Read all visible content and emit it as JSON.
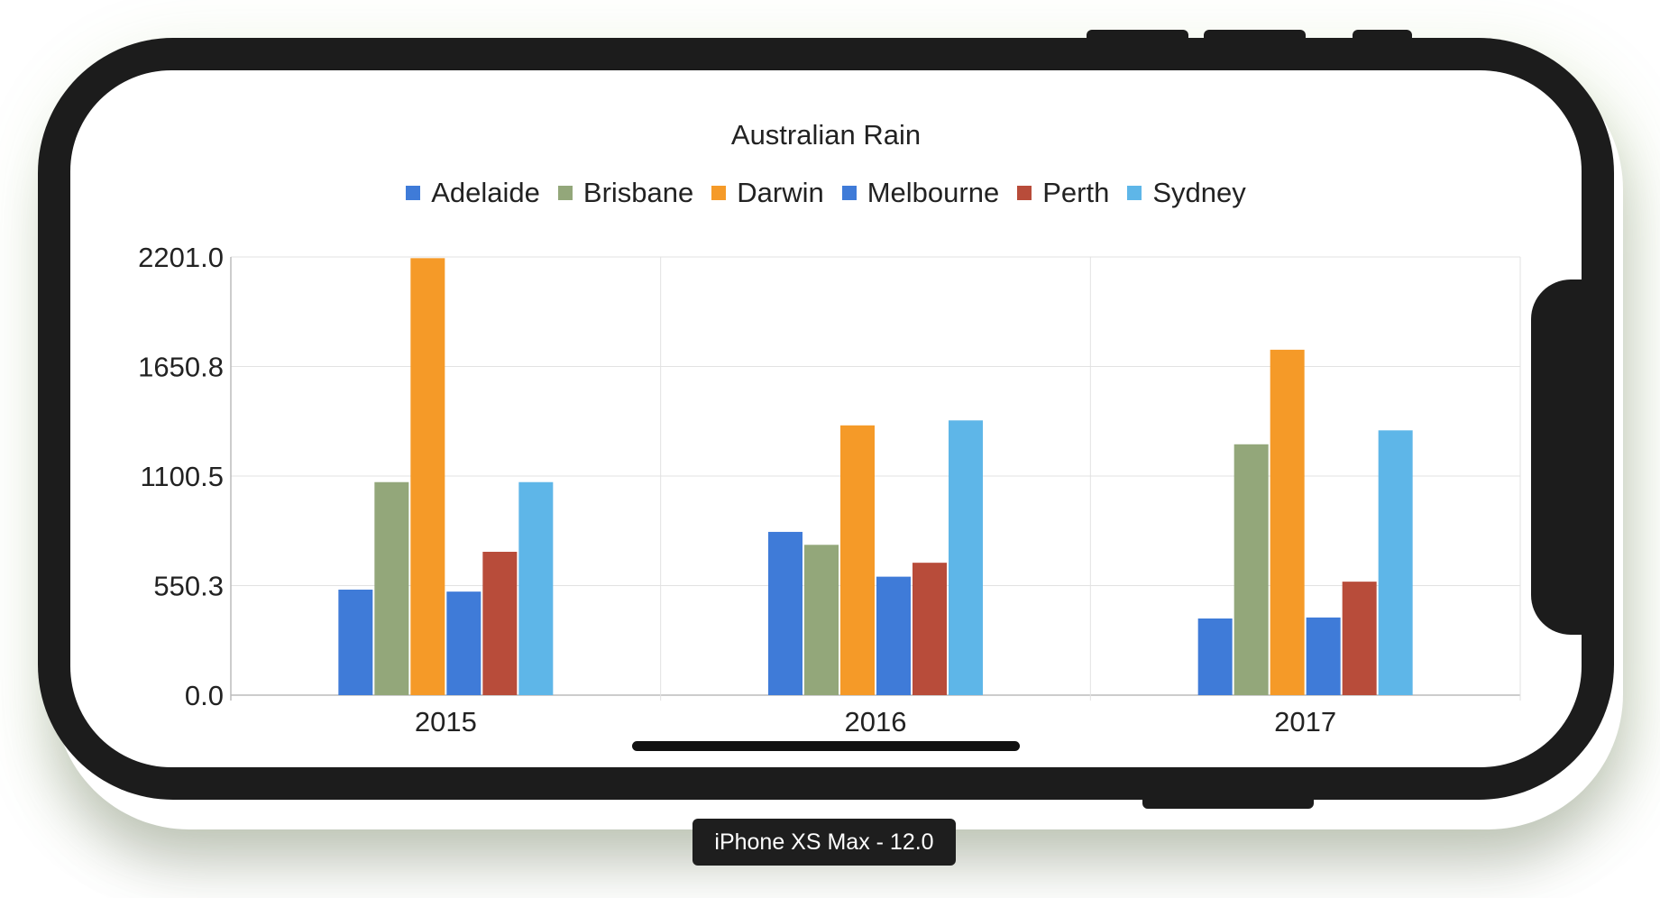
{
  "device_label": "iPhone XS Max - 12.0",
  "chart_data": {
    "type": "bar",
    "title": "Australian Rain",
    "categories": [
      "2015",
      "2016",
      "2017"
    ],
    "series": [
      {
        "name": "Adelaide",
        "color": "#3f7bd8",
        "values": [
          530,
          820,
          385
        ]
      },
      {
        "name": "Brisbane",
        "color": "#93a77a",
        "values": [
          1070,
          755,
          1260
        ]
      },
      {
        "name": "Darwin",
        "color": "#f59a28",
        "values": [
          2195,
          1355,
          1735
        ]
      },
      {
        "name": "Melbourne",
        "color": "#3f7bd8",
        "values": [
          520,
          595,
          390
        ]
      },
      {
        "name": "Perth",
        "color": "#b84c3a",
        "values": [
          720,
          665,
          570
        ]
      },
      {
        "name": "Sydney",
        "color": "#5eb6e8",
        "values": [
          1070,
          1380,
          1330
        ]
      }
    ],
    "yticks": [
      "0.0",
      "550.3",
      "1100.5",
      "1650.8",
      "2201.0"
    ],
    "ylim": [
      0,
      2201.0
    ],
    "legend": "top-center",
    "grid": true
  }
}
